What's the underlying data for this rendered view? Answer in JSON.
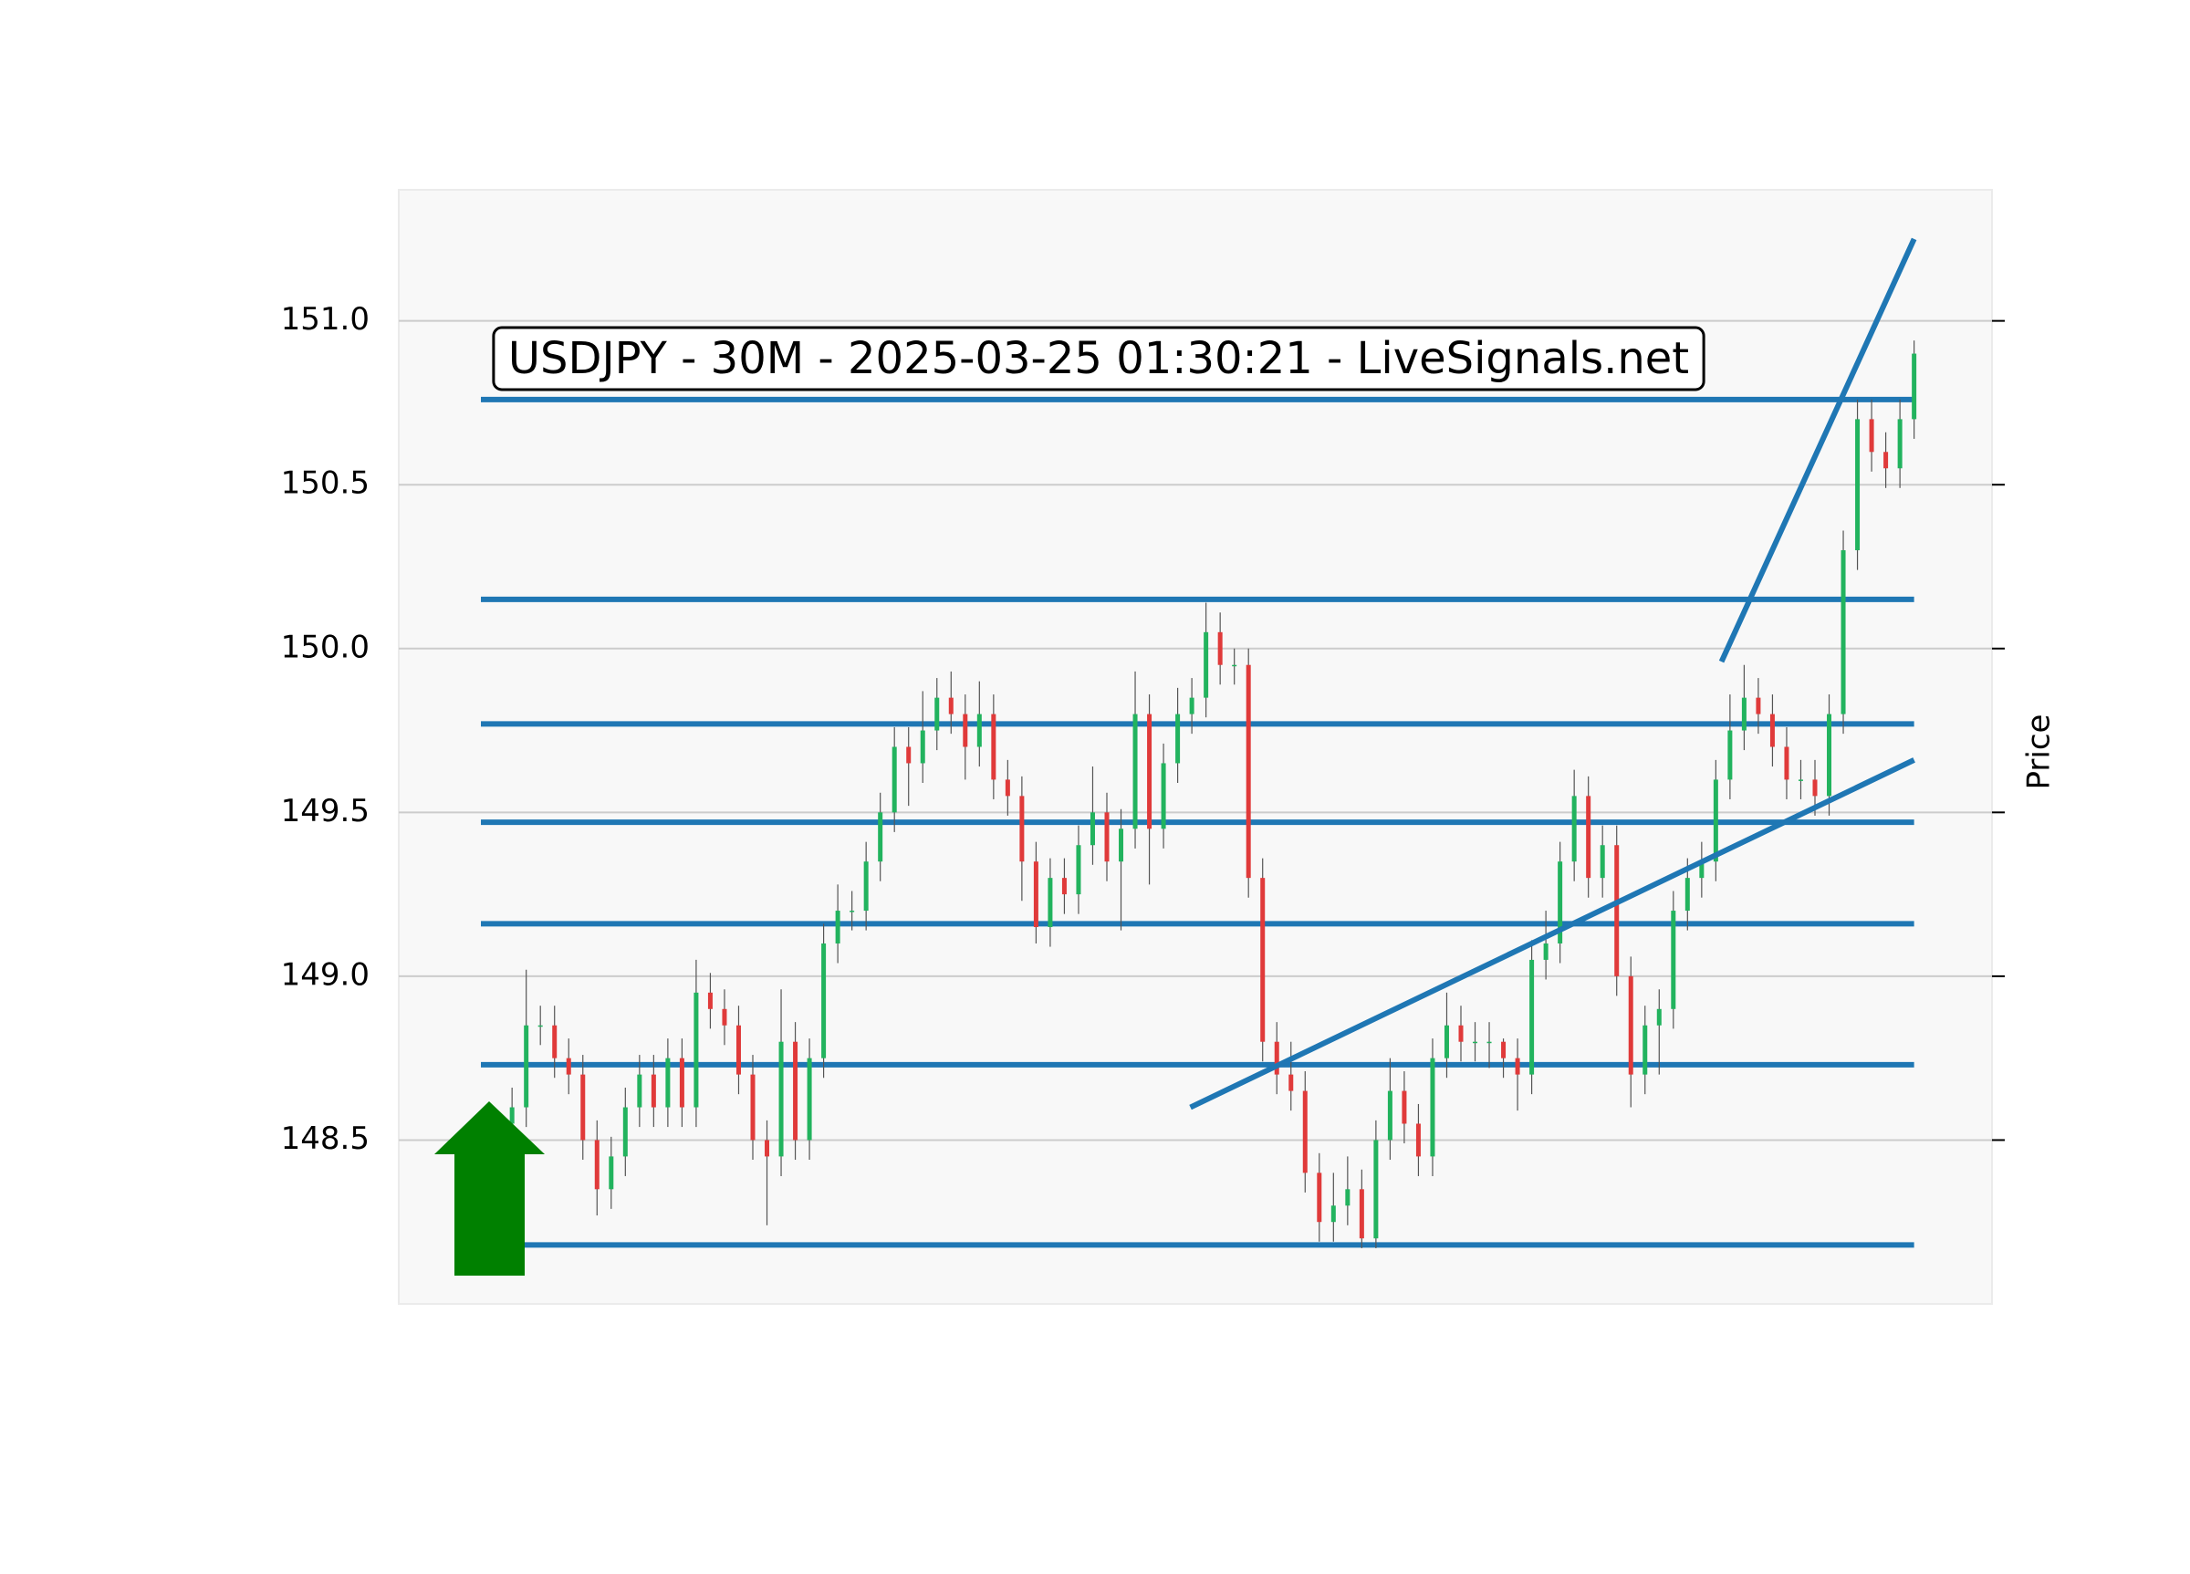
{
  "chart_data": {
    "type": "candlestick",
    "title": "USDJPY - 30M - 2025-03-25 01:30:21 - LiveSignals.net",
    "y_label": "Price",
    "xlim": [
      -8,
      104.5
    ],
    "ylim": [
      148.0,
      151.4
    ],
    "yticks": [
      148.5,
      {
        "value": 149.0,
        "label": "149.0"
      },
      149.5,
      {
        "value": 150.0,
        "label": "150.0"
      },
      150.5,
      {
        "value": 151.0,
        "label": "151.0"
      }
    ],
    "grid": true,
    "up_color": "#22b35e",
    "down_color": "#e03a3a",
    "open": [
      148.55,
      148.6,
      148.85,
      148.85,
      148.75,
      148.7,
      148.5,
      148.35,
      148.45,
      148.6,
      148.7,
      148.6,
      148.75,
      148.6,
      148.95,
      148.9,
      148.85,
      148.7,
      148.5,
      148.45,
      148.8,
      148.5,
      148.75,
      149.1,
      149.2,
      149.2,
      149.35,
      149.5,
      149.7,
      149.65,
      149.75,
      149.85,
      149.8,
      149.7,
      149.8,
      149.6,
      149.55,
      149.35,
      149.15,
      149.3,
      149.25,
      149.4,
      149.5,
      149.35,
      149.45,
      149.8,
      149.45,
      149.65,
      149.8,
      149.85,
      150.05,
      149.95,
      149.95,
      149.3,
      148.8,
      148.7,
      148.65,
      148.4,
      148.25,
      148.3,
      148.35,
      148.2,
      148.5,
      148.65,
      148.55,
      148.45,
      148.75,
      148.85,
      148.8,
      148.8,
      148.8,
      148.75,
      148.7,
      149.05,
      149.1,
      149.35,
      149.55,
      149.3,
      149.4,
      149.0,
      148.7,
      148.85,
      148.9,
      149.2,
      149.3,
      149.35,
      149.6,
      149.75,
      149.85,
      149.8,
      149.7,
      149.6,
      149.6,
      149.55,
      149.8,
      150.3,
      150.7,
      150.6,
      150.55,
      150.7
    ],
    "high": [
      148.66,
      149.02,
      148.91,
      148.91,
      148.81,
      148.76,
      148.56,
      148.51,
      148.66,
      148.76,
      148.76,
      148.81,
      148.81,
      149.05,
      149.01,
      148.96,
      148.91,
      148.76,
      148.56,
      148.96,
      148.86,
      148.81,
      149.16,
      149.28,
      149.26,
      149.41,
      149.56,
      149.76,
      149.76,
      149.87,
      149.91,
      149.93,
      149.86,
      149.9,
      149.86,
      149.66,
      149.61,
      149.41,
      149.36,
      149.36,
      149.46,
      149.64,
      149.56,
      149.51,
      149.93,
      149.86,
      149.71,
      149.88,
      149.91,
      150.14,
      150.11,
      150.0,
      150.0,
      149.36,
      148.86,
      148.8,
      148.71,
      148.46,
      148.4,
      148.45,
      148.41,
      148.56,
      148.75,
      148.71,
      148.61,
      148.81,
      148.95,
      148.91,
      148.86,
      148.86,
      148.81,
      148.81,
      149.11,
      149.2,
      149.41,
      149.63,
      149.61,
      149.46,
      149.46,
      149.06,
      148.91,
      148.96,
      149.26,
      149.36,
      149.41,
      149.66,
      149.86,
      149.95,
      149.91,
      149.86,
      149.76,
      149.66,
      149.66,
      149.86,
      150.36,
      150.76,
      150.76,
      150.66,
      150.76,
      150.94
    ],
    "low": [
      148.49,
      148.54,
      148.79,
      148.69,
      148.64,
      148.44,
      148.27,
      148.29,
      148.39,
      148.54,
      148.54,
      148.54,
      148.54,
      148.54,
      148.84,
      148.79,
      148.64,
      148.44,
      148.24,
      148.39,
      148.44,
      148.44,
      148.69,
      149.04,
      149.14,
      149.14,
      149.29,
      149.44,
      149.52,
      149.59,
      149.69,
      149.74,
      149.6,
      149.64,
      149.54,
      149.49,
      149.23,
      149.1,
      149.09,
      149.19,
      149.19,
      149.34,
      149.29,
      149.14,
      149.39,
      149.28,
      149.39,
      149.59,
      149.74,
      149.79,
      149.89,
      149.89,
      149.24,
      148.74,
      148.64,
      148.59,
      148.34,
      148.19,
      148.19,
      148.24,
      148.17,
      148.17,
      148.44,
      148.49,
      148.39,
      148.39,
      148.69,
      148.74,
      148.74,
      148.72,
      148.69,
      148.59,
      148.64,
      148.99,
      149.04,
      149.29,
      149.24,
      149.24,
      148.94,
      148.6,
      148.64,
      148.7,
      148.84,
      149.14,
      149.24,
      149.29,
      149.54,
      149.69,
      149.74,
      149.64,
      149.54,
      149.54,
      149.49,
      149.49,
      149.74,
      150.24,
      150.54,
      150.49,
      150.49,
      150.64
    ],
    "close": [
      148.6,
      148.85,
      148.85,
      148.75,
      148.7,
      148.5,
      148.35,
      148.45,
      148.6,
      148.7,
      148.6,
      148.75,
      148.6,
      148.95,
      148.9,
      148.85,
      148.7,
      148.5,
      148.45,
      148.8,
      148.5,
      148.75,
      149.1,
      149.2,
      149.2,
      149.35,
      149.5,
      149.7,
      149.65,
      149.75,
      149.85,
      149.8,
      149.7,
      149.8,
      149.6,
      149.55,
      149.35,
      149.15,
      149.3,
      149.25,
      149.4,
      149.5,
      149.35,
      149.45,
      149.8,
      149.45,
      149.65,
      149.8,
      149.85,
      150.05,
      149.95,
      149.95,
      149.3,
      148.8,
      148.7,
      148.65,
      148.4,
      148.25,
      148.3,
      148.35,
      148.2,
      148.5,
      148.65,
      148.55,
      148.45,
      148.75,
      148.85,
      148.8,
      148.8,
      148.8,
      148.75,
      148.7,
      149.05,
      149.1,
      149.35,
      149.55,
      149.3,
      149.4,
      149.0,
      148.7,
      148.85,
      148.9,
      149.2,
      149.3,
      149.35,
      149.6,
      149.75,
      149.85,
      149.8,
      149.7,
      149.6,
      149.6,
      149.55,
      149.8,
      150.3,
      150.7,
      150.6,
      150.55,
      150.7,
      150.9
    ],
    "line_color": "#1f77b4",
    "levels": [
      150.76,
      150.15,
      149.77,
      149.47,
      149.16,
      148.73,
      148.18
    ],
    "level_xrange": [
      -2.2,
      99
    ],
    "trend_lines": [
      {
        "x": [
          47.9,
          99
        ],
        "y": [
          148.6,
          149.66
        ]
      },
      {
        "x": [
          85.4,
          99
        ],
        "y": [
          149.96,
          151.25
        ]
      }
    ]
  }
}
